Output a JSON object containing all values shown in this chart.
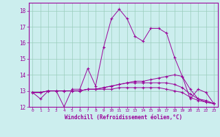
{
  "xlabel": "Windchill (Refroidissement éolien,°C)",
  "x": [
    0,
    1,
    2,
    3,
    4,
    5,
    6,
    7,
    8,
    9,
    10,
    11,
    12,
    13,
    14,
    15,
    16,
    17,
    18,
    19,
    20,
    21,
    22,
    23
  ],
  "line1": [
    12.9,
    12.5,
    13.0,
    13.0,
    12.0,
    13.1,
    13.1,
    14.4,
    13.3,
    15.7,
    17.5,
    18.1,
    17.5,
    16.4,
    16.1,
    16.9,
    16.9,
    16.6,
    15.1,
    13.9,
    12.5,
    13.1,
    12.9,
    12.2
  ],
  "line2": [
    12.9,
    12.9,
    13.0,
    13.0,
    13.0,
    13.0,
    13.0,
    13.1,
    13.1,
    13.2,
    13.3,
    13.4,
    13.5,
    13.6,
    13.6,
    13.7,
    13.8,
    13.9,
    14.0,
    13.9,
    13.1,
    12.5,
    12.4,
    12.2
  ],
  "line3": [
    12.9,
    12.9,
    13.0,
    13.0,
    13.0,
    13.0,
    13.0,
    13.1,
    13.1,
    13.2,
    13.3,
    13.4,
    13.5,
    13.5,
    13.5,
    13.5,
    13.5,
    13.5,
    13.4,
    13.2,
    12.8,
    12.5,
    12.3,
    12.2
  ],
  "line4": [
    12.9,
    12.9,
    13.0,
    13.0,
    13.0,
    13.0,
    13.0,
    13.1,
    13.1,
    13.1,
    13.1,
    13.2,
    13.2,
    13.2,
    13.2,
    13.2,
    13.2,
    13.1,
    13.0,
    12.9,
    12.6,
    12.4,
    12.3,
    12.2
  ],
  "color": "#990099",
  "bg_color": "#cceeee",
  "grid_color": "#99ccbb",
  "ylim": [
    12,
    18.5
  ],
  "yticks": [
    12,
    13,
    14,
    15,
    16,
    17,
    18
  ],
  "xlim": [
    -0.5,
    23.5
  ]
}
